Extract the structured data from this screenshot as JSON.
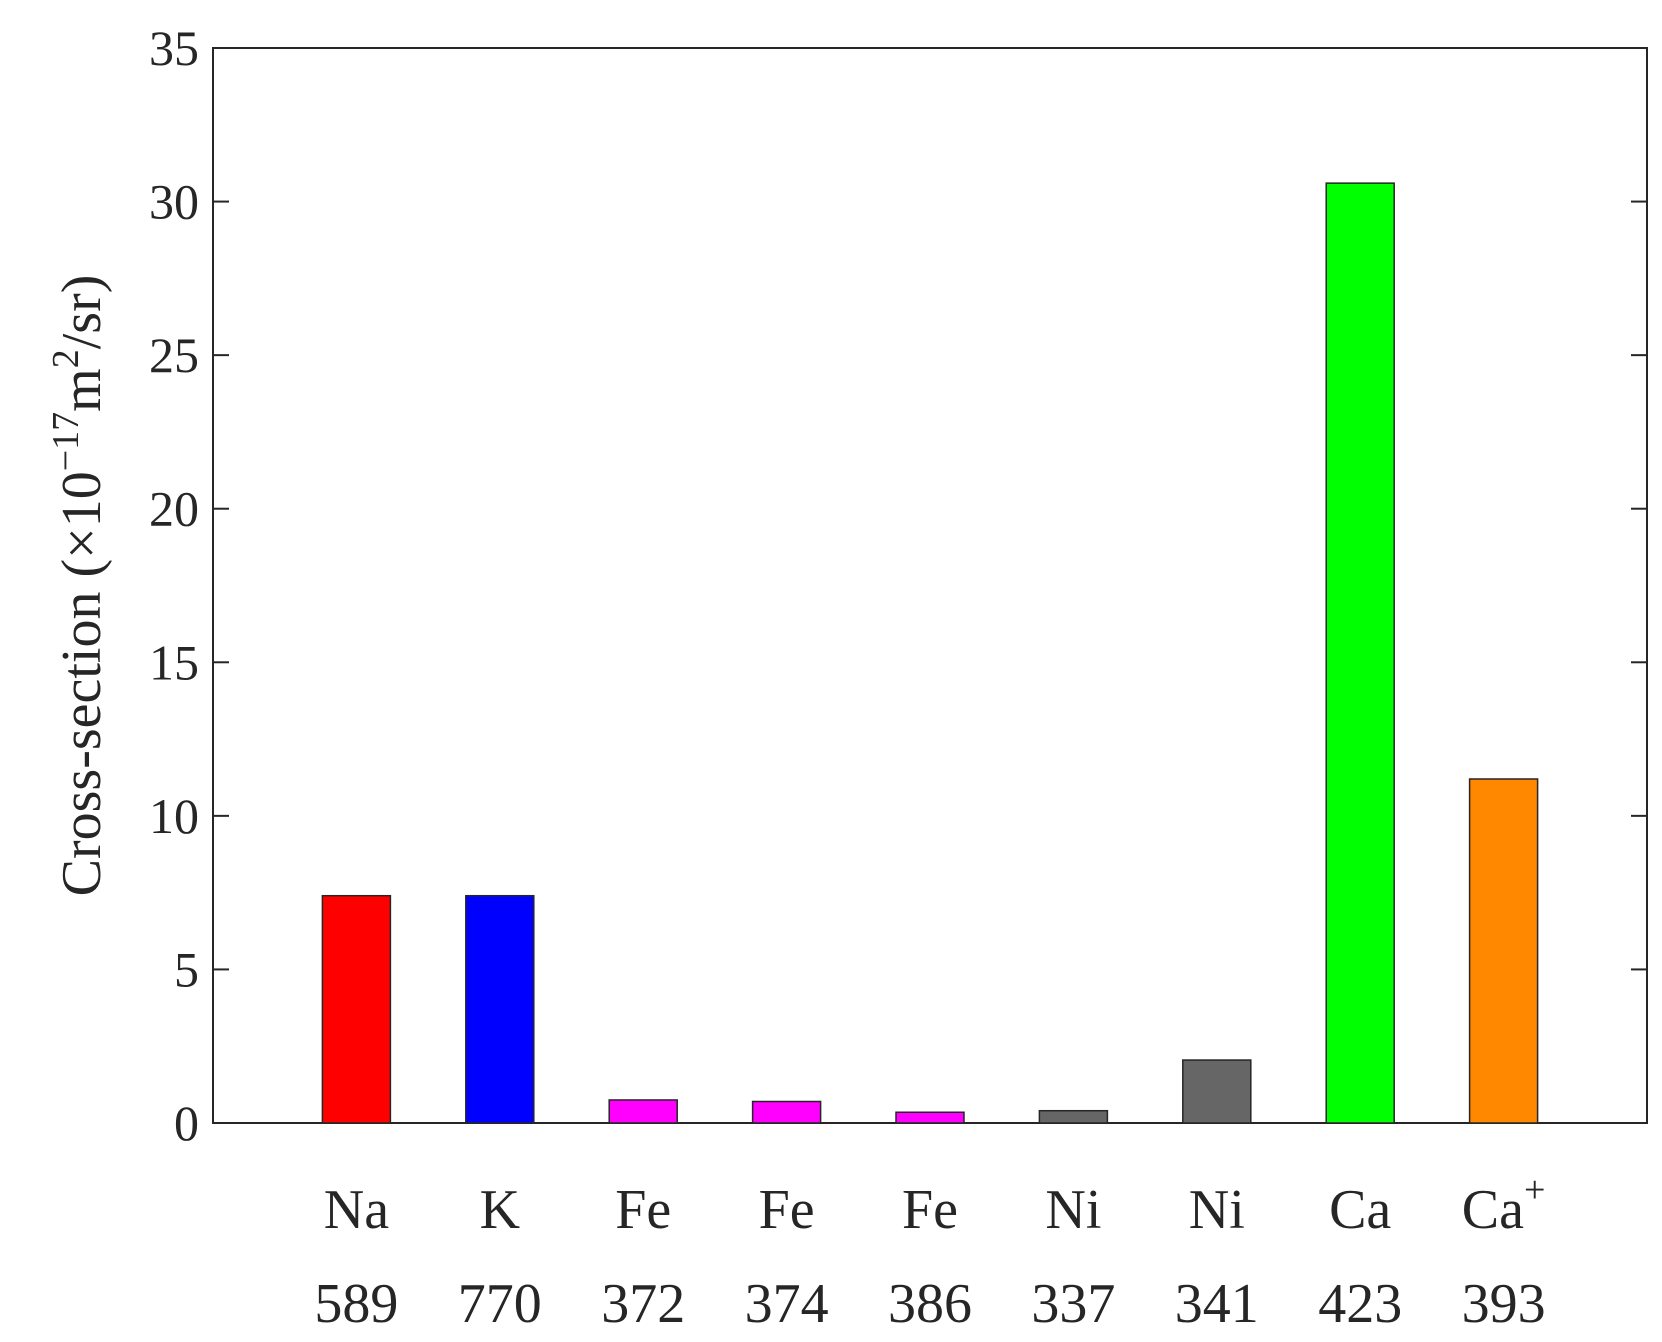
{
  "chart_data": {
    "type": "bar",
    "categories": [
      {
        "element": "Na",
        "superscript": "",
        "wavelength": "589"
      },
      {
        "element": "K",
        "superscript": "",
        "wavelength": "770"
      },
      {
        "element": "Fe",
        "superscript": "",
        "wavelength": "372"
      },
      {
        "element": "Fe",
        "superscript": "",
        "wavelength": "374"
      },
      {
        "element": "Fe",
        "superscript": "",
        "wavelength": "386"
      },
      {
        "element": "Ni",
        "superscript": "",
        "wavelength": "337"
      },
      {
        "element": "Ni",
        "superscript": "",
        "wavelength": "341"
      },
      {
        "element": "Ca",
        "superscript": "",
        "wavelength": "423"
      },
      {
        "element": "Ca",
        "superscript": "+",
        "wavelength": "393"
      }
    ],
    "values": [
      7.4,
      7.4,
      0.75,
      0.7,
      0.35,
      0.4,
      2.05,
      30.6,
      11.2
    ],
    "colors": [
      "#ff0000",
      "#0000ff",
      "#ff00ff",
      "#ff00ff",
      "#ff00ff",
      "#666666",
      "#666666",
      "#00ff00",
      "#ff8800"
    ],
    "ylabel": {
      "prefix": "Cross-section (×10",
      "exp1": "−17",
      "middle": "m",
      "exp2": "2",
      "suffix": "/sr)"
    },
    "ylim": [
      0,
      35
    ],
    "yticks": [
      0,
      5,
      10,
      15,
      20,
      25,
      30,
      35
    ],
    "xlim": [
      0,
      10
    ],
    "grid": false,
    "legend": "none"
  }
}
